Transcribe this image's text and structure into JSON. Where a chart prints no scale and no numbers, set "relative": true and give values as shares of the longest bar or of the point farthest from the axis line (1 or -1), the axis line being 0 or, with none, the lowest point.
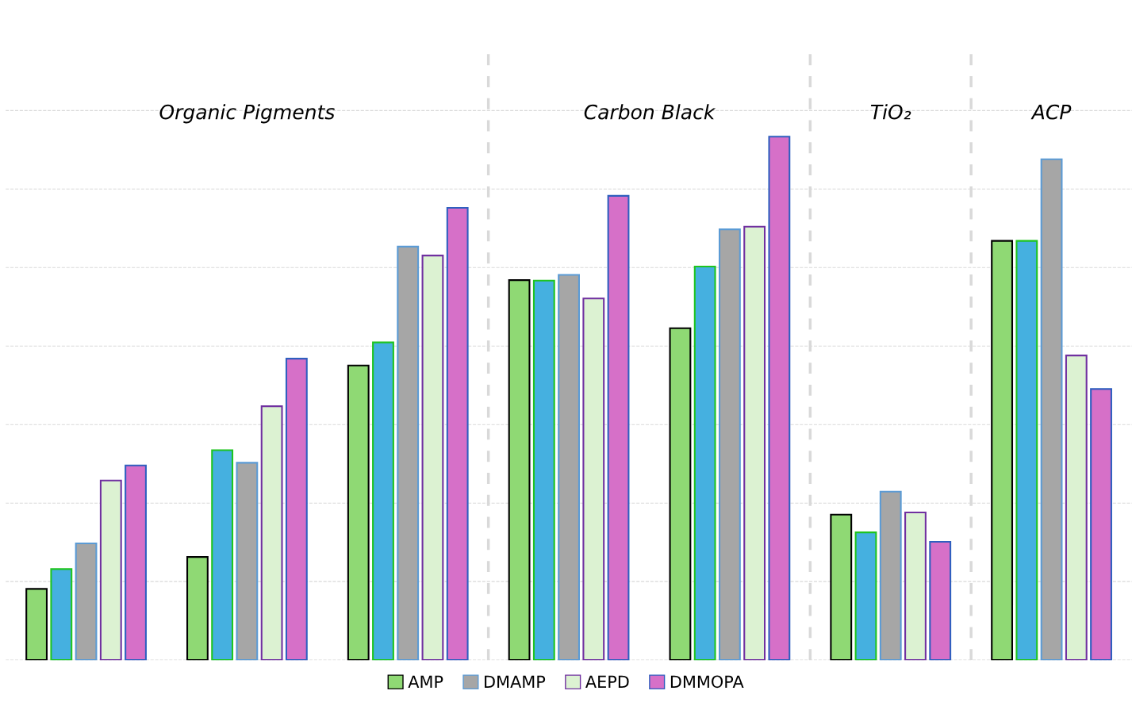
{
  "chart_data": {
    "type": "bar",
    "relative": true,
    "categories": [
      null,
      null,
      null,
      null,
      null,
      null,
      null
    ],
    "series": [
      {
        "name": "AMP",
        "color": "#8fd974",
        "values": [
          0.136,
          0.197,
          0.563,
          0.726,
          0.634,
          0.278,
          0.801
        ]
      },
      {
        "color": "#45b0e0",
        "values": [
          0.174,
          0.401,
          0.607,
          0.725,
          0.752,
          0.244,
          0.801
        ]
      },
      {
        "name": "DMAMP",
        "color": "#a6a6a6",
        "values": [
          0.223,
          0.377,
          0.79,
          0.736,
          0.823,
          0.322,
          0.957
        ]
      },
      {
        "name": "AEPD",
        "color": "#dcf2d2",
        "values": [
          0.343,
          0.485,
          0.773,
          0.691,
          0.828,
          0.282,
          0.582
        ]
      },
      {
        "name": "DMMOPA",
        "color": "#d670c8",
        "values": [
          0.372,
          0.576,
          0.864,
          0.887,
          1.0,
          0.226,
          0.518
        ]
      }
    ],
    "annotations": [
      "Organic Pigments",
      "Carbon Black",
      "TiO₂",
      "ACP"
    ],
    "grid": "y",
    "legend": "bottom"
  }
}
